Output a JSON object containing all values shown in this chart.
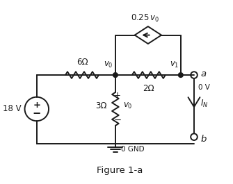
{
  "title": "Figure 1-a",
  "voltage_source_label": "18 V",
  "r1_label": "6Ω",
  "r2_label": "2Ω",
  "r3_label": "3Ω",
  "dep_source_label": "0.25 v₀",
  "v0_label": "v₀",
  "v1_label": "v₁",
  "node_a_label": "a",
  "node_b_label": "b",
  "gnd_label": "0 GND",
  "voltage_label": "0 V",
  "current_label": "I_N",
  "bg_color": "#ffffff",
  "line_color": "#1a1a1a",
  "line_width": 1.4,
  "font_size": 8.5
}
